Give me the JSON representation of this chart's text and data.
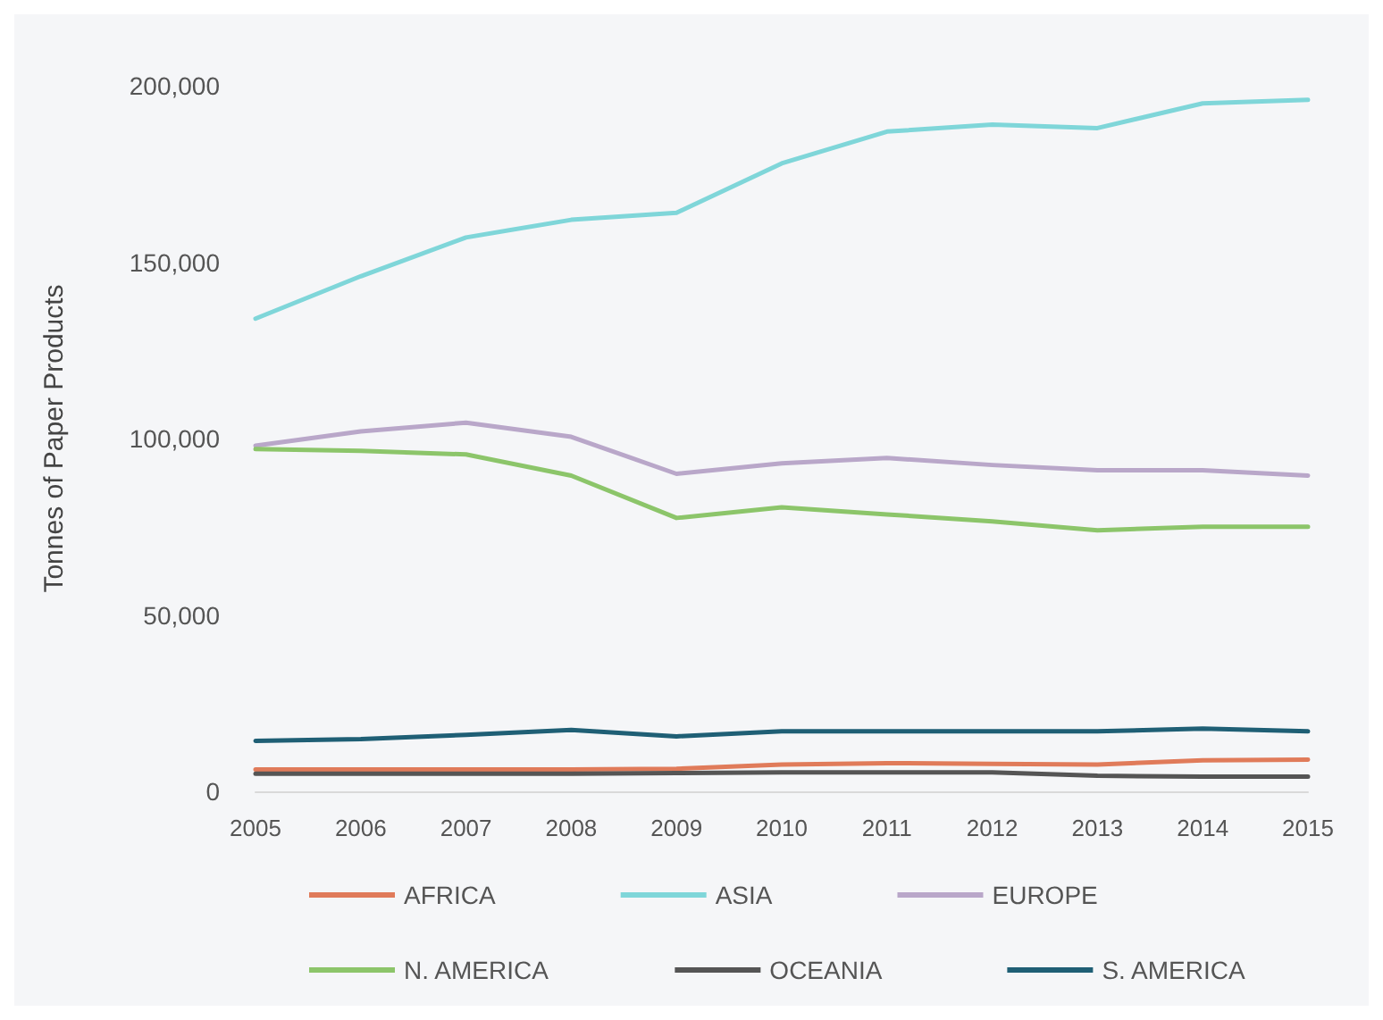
{
  "chart_data": {
    "type": "line",
    "ylabel": "Tonnes of Paper Products",
    "categories": [
      "2005",
      "2006",
      "2007",
      "2008",
      "2009",
      "2010",
      "2011",
      "2012",
      "2013",
      "2014",
      "2015"
    ],
    "series": [
      {
        "name": "AFRICA",
        "color": "#e07b5a",
        "values": [
          6200,
          6200,
          6200,
          6200,
          6400,
          7600,
          8000,
          7800,
          7600,
          8800,
          9000
        ]
      },
      {
        "name": "ASIA",
        "color": "#7fd6d9",
        "values": [
          134000,
          146000,
          157000,
          162000,
          164000,
          178000,
          187000,
          189000,
          188000,
          195000,
          196000
        ]
      },
      {
        "name": "EUROPE",
        "color": "#b9a7c9",
        "values": [
          98000,
          102000,
          104500,
          100500,
          90000,
          93000,
          94500,
          92500,
          91000,
          91000,
          89500
        ]
      },
      {
        "name": "N. AMERICA",
        "color": "#8cc56a",
        "values": [
          97000,
          96500,
          95500,
          89500,
          77500,
          80500,
          78500,
          76500,
          74000,
          75000,
          75000
        ]
      },
      {
        "name": "OCEANIA",
        "color": "#555555",
        "values": [
          5000,
          5000,
          5000,
          5000,
          5200,
          5400,
          5400,
          5400,
          4400,
          4200,
          4200
        ]
      },
      {
        "name": "S. AMERICA",
        "color": "#1f5f75",
        "values": [
          14300,
          14800,
          16000,
          17400,
          15600,
          17000,
          17000,
          17000,
          17000,
          17800,
          17000
        ]
      }
    ],
    "ylim": [
      0,
      200000
    ],
    "yticks": [
      0,
      {
        "value": 50000,
        "label": "50,000"
      },
      {
        "value": 100000,
        "label": "100,000"
      },
      {
        "value": 150000,
        "label": "150,000"
      },
      {
        "value": 200000,
        "label": "200,000"
      }
    ],
    "grid": false,
    "legend": "bottom",
    "marker": "none",
    "line_style": "solid"
  }
}
